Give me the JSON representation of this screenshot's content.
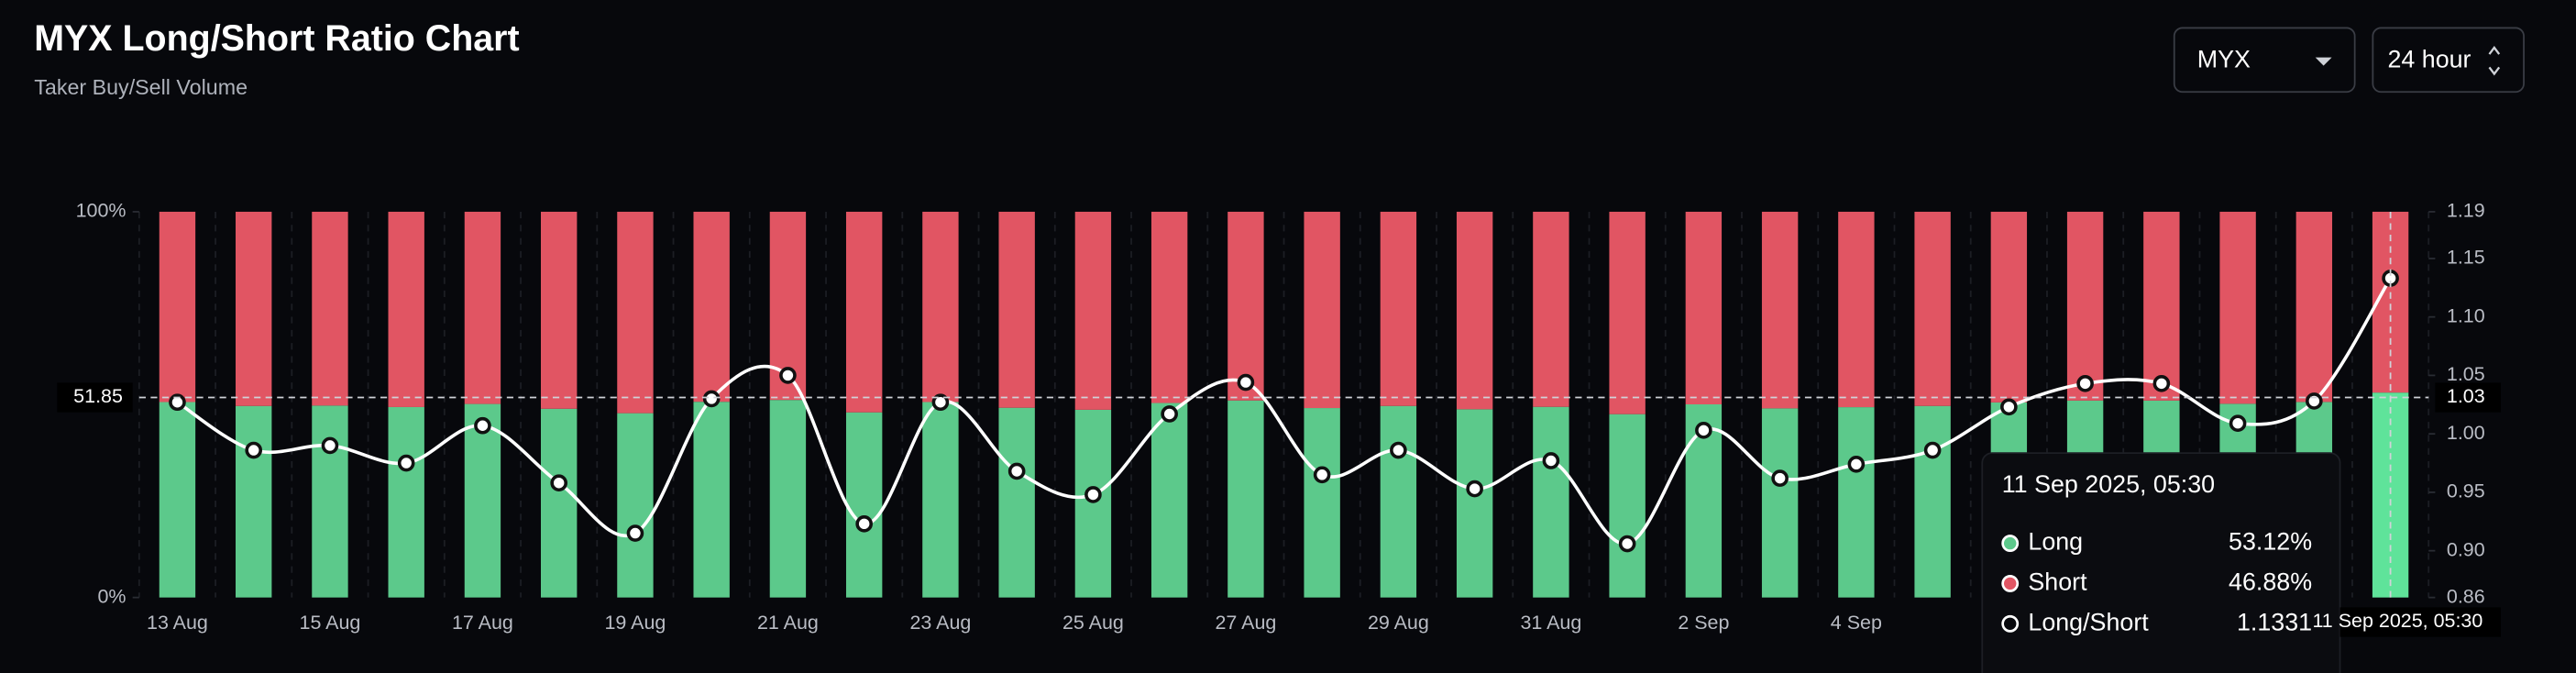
{
  "chart_data": {
    "type": "bar_line",
    "title": "MYX Long/Short Ratio Chart",
    "subtitle": "Taker Buy/Sell Volume",
    "controls": [
      "MYX",
      "24 hour"
    ],
    "categories": [
      "13 Aug",
      null,
      "15 Aug",
      null,
      "17 Aug",
      null,
      "19 Aug",
      null,
      "21 Aug",
      null,
      "23 Aug",
      null,
      "25 Aug",
      null,
      "27 Aug",
      null,
      "29 Aug",
      null,
      "31 Aug",
      null,
      "2 Sep",
      null,
      "4 Sep",
      null,
      null,
      null,
      null,
      null,
      null,
      null
    ],
    "series": [
      {
        "name": "Long",
        "color": "#5cc98b",
        "values": [
          50.67,
          49.65,
          49.75,
          49.37,
          50.17,
          48.93,
          47.78,
          50.74,
          51.22,
          48.0,
          50.67,
          49.19,
          48.67,
          50.42,
          51.08,
          49.11,
          49.65,
          48.8,
          49.42,
          47.53,
          50.07,
          49.03,
          49.34,
          49.65,
          50.57,
          51.05,
          51.05,
          50.22,
          50.69,
          53.12
        ]
      },
      {
        "name": "Short",
        "color": "#e15563",
        "values": [
          49.33,
          50.35,
          50.25,
          50.63,
          49.83,
          51.07,
          52.22,
          49.26,
          48.78,
          52.0,
          49.33,
          50.81,
          51.33,
          49.58,
          48.92,
          50.89,
          50.35,
          51.2,
          50.58,
          52.47,
          49.93,
          50.97,
          50.66,
          50.35,
          49.43,
          48.95,
          48.95,
          49.78,
          49.31,
          46.88
        ]
      },
      {
        "name": "Long/Short",
        "color": "#ffffff",
        "axis": "y2",
        "values": [
          1.027,
          0.986,
          0.99,
          0.975,
          1.007,
          0.958,
          0.915,
          1.03,
          1.05,
          0.923,
          1.027,
          0.968,
          0.948,
          1.017,
          1.044,
          0.965,
          0.986,
          0.953,
          0.977,
          0.906,
          1.003,
          0.962,
          0.974,
          0.986,
          1.023,
          1.043,
          1.043,
          1.009,
          1.028,
          1.1331
        ]
      }
    ],
    "ylim": [
      0,
      100
    ],
    "yticks": [
      {
        "value": 0,
        "label": "0%"
      },
      {
        "value": 100,
        "label": "100%"
      }
    ],
    "y2lim": [
      0.86,
      1.19
    ],
    "y2ticks": [
      0.86,
      {
        "value": 0.9,
        "label": "0.90"
      },
      0.95,
      {
        "value": 1.0,
        "label": "1.00"
      },
      1.05,
      {
        "value": 1.1,
        "label": "1.10"
      },
      1.15,
      1.19
    ],
    "crosshair": {
      "y": 51.85,
      "y2": 1.03,
      "index": 29
    },
    "tooltip": {
      "title": "11 Sep 2025, 05:30",
      "value_labels": [
        "53.12%",
        "46.88%",
        "1.1331"
      ]
    }
  }
}
